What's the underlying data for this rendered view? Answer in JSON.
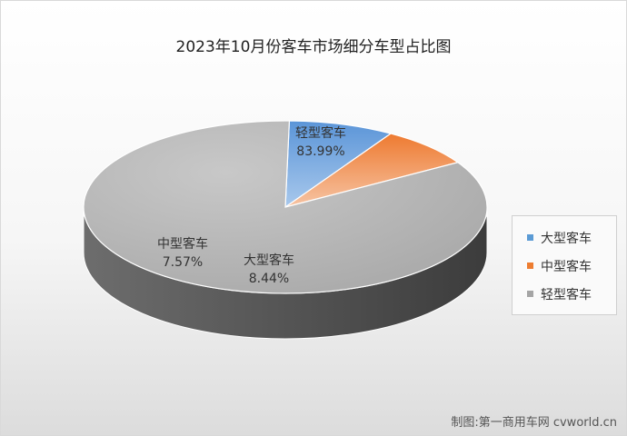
{
  "chart_data": {
    "type": "pie",
    "title": "2023年10月份客车市场细分车型占比图",
    "slices": [
      {
        "name": "大型客车",
        "value": 8.44,
        "label": "8.44%",
        "color": "#5b9bd5"
      },
      {
        "name": "中型客车",
        "value": 7.57,
        "label": "7.57%",
        "color": "#ed7d31"
      },
      {
        "name": "轻型客车",
        "value": 83.99,
        "label": "83.99%",
        "color": "#a5a5a5"
      }
    ],
    "legend_position": "right",
    "three_d": true
  },
  "watermark": "制图:第一商用车网 cvworld.cn"
}
